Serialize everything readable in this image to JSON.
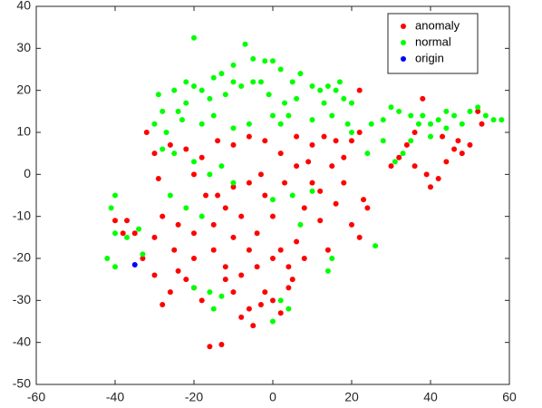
{
  "chart_data": {
    "type": "scatter",
    "xlim": [
      -60,
      60
    ],
    "xticks": [
      -60,
      -40,
      -20,
      0,
      20,
      40,
      60
    ],
    "ylim": [
      -50,
      40
    ],
    "yticks": [
      -50,
      -40,
      -30,
      -20,
      -10,
      0,
      10,
      20,
      30,
      40
    ],
    "legend": "northeast",
    "series": [
      {
        "name": "anomaly",
        "color": "#ff0000",
        "x": [
          -16,
          -13,
          -5,
          -8,
          -6,
          -3,
          0,
          2,
          -2,
          4,
          -10,
          -12,
          -18,
          -20,
          -22,
          -24,
          -26,
          -28,
          -30,
          -33,
          -35,
          -37,
          -40,
          -38,
          -30,
          -28,
          -29,
          -30,
          -32,
          -26,
          -22,
          -18,
          -14,
          -10,
          -6,
          -2,
          2,
          6,
          10,
          13,
          16,
          20,
          22,
          22,
          -20,
          -17,
          -15,
          -12,
          -10,
          -8,
          -6,
          -4,
          -2,
          0,
          2,
          4,
          6,
          8,
          10,
          12,
          14,
          16,
          18,
          20,
          22,
          23,
          24,
          -25,
          -20,
          -15,
          -12,
          -8,
          -4,
          0,
          -6,
          -3,
          3,
          6,
          9,
          12,
          15,
          18,
          -24,
          -20,
          30,
          32,
          34,
          36,
          38,
          39,
          40,
          42,
          44,
          46,
          48,
          50,
          52,
          53,
          47,
          43,
          36,
          -10,
          -14,
          5,
          8
        ],
        "values": [
          -41,
          -40.5,
          -36,
          -34,
          -32,
          -31,
          -30,
          -33,
          -28,
          -27,
          -28,
          -25,
          -30,
          -27,
          -25,
          -23,
          -28,
          -31,
          -24,
          -20,
          -14,
          -11,
          -11,
          -14,
          -15,
          -10,
          -1,
          5,
          10,
          7,
          6,
          4,
          8,
          7,
          9,
          8,
          5,
          9,
          7,
          9,
          8,
          8,
          20,
          10,
          0,
          -5,
          -12,
          -8,
          -15,
          -10,
          -18,
          -14,
          -5,
          -10,
          -18,
          -22,
          -16,
          -8,
          -2,
          -11,
          -18,
          -7,
          -2,
          -12,
          -15,
          -6,
          -8,
          -18,
          -20,
          -18,
          -22,
          -24,
          -22,
          -20,
          -2,
          0,
          -2,
          2,
          3,
          -4,
          2,
          4,
          -12,
          -14,
          2,
          4,
          7,
          10,
          18,
          0,
          -3,
          -1,
          3,
          6,
          5,
          7,
          15,
          12,
          8,
          9,
          2,
          -3,
          -5,
          -25,
          -20
        ]
      },
      {
        "name": "normal",
        "color": "#00ff00",
        "x": [
          -20,
          -7,
          -5,
          -2,
          0,
          -10,
          -13,
          -15,
          -22,
          -20,
          -25,
          -18,
          -10,
          -8,
          -5,
          -3,
          2,
          5,
          7,
          10,
          12,
          14,
          16,
          18,
          20,
          17,
          13,
          6,
          3,
          -1,
          -12,
          -16,
          -22,
          -24,
          -28,
          -29,
          -30,
          -27,
          -23,
          -18,
          -15,
          -10,
          -6,
          0,
          4,
          2,
          10,
          15,
          19,
          -28,
          -25,
          -20,
          -16,
          -13,
          -10,
          -26,
          -22,
          -18,
          0,
          5,
          10,
          7,
          15,
          14,
          26,
          -40,
          -41,
          -40,
          -42,
          -40,
          -33,
          -34,
          -37,
          -15,
          -13,
          -16,
          -20,
          2,
          0,
          4,
          30,
          32,
          35,
          37,
          38,
          40,
          42,
          44,
          46,
          50,
          52,
          54,
          56,
          58,
          48,
          33,
          35,
          31,
          28,
          24,
          20,
          25,
          28,
          44,
          40
        ],
        "values": [
          32.5,
          31,
          27.5,
          27,
          27,
          26,
          24,
          23,
          22,
          21,
          20,
          20,
          22,
          21,
          22,
          22,
          25,
          22,
          24,
          21,
          20,
          21,
          20,
          18,
          17,
          22,
          17,
          18,
          17,
          19,
          19,
          18,
          17,
          15,
          15,
          19,
          12,
          10,
          13,
          12,
          14,
          11,
          12,
          14,
          14,
          12,
          13,
          14,
          12,
          6,
          5,
          3,
          0,
          2,
          -2,
          -5,
          -8,
          -10,
          -6,
          -5,
          -4,
          -12,
          -20,
          -23,
          -17,
          -5,
          -8,
          -14,
          -20,
          -22,
          -19,
          -13,
          -15,
          -32,
          -29,
          -28,
          -27,
          -30,
          -35,
          -32,
          16,
          15,
          14,
          12,
          14,
          12,
          13,
          15,
          14,
          15,
          16,
          14,
          13,
          13,
          12,
          5,
          8,
          3,
          8,
          5,
          10,
          12,
          13,
          11,
          9
        ]
      },
      {
        "name": "origin",
        "color": "#0000ff",
        "x": [
          -35
        ],
        "values": [
          -21.5
        ]
      }
    ]
  }
}
